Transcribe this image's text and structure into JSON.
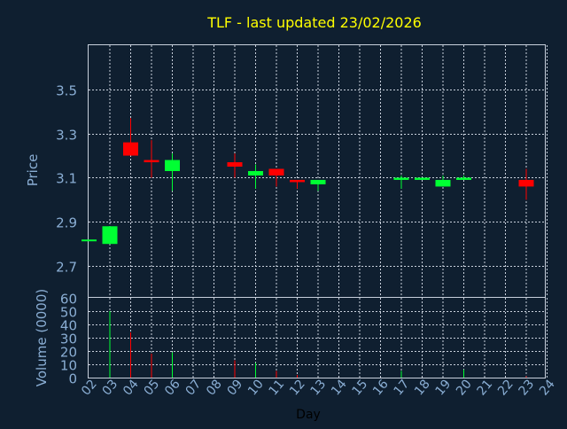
{
  "chart_data": [
    {
      "type": "candlestick",
      "title": "TLF - last updated 23/02/2026",
      "ylabel": "Price",
      "ylim": [
        2.56,
        3.7
      ],
      "yticks": [
        "2.7",
        "2.9",
        "3.1",
        "3.3",
        "3.5"
      ],
      "grid": true,
      "candles": [
        {
          "day": "02",
          "open": 2.82,
          "close": 2.82,
          "high": 2.82,
          "low": 2.82
        },
        {
          "day": "03",
          "open": 2.8,
          "close": 2.88,
          "high": 2.88,
          "low": 2.8
        },
        {
          "day": "04",
          "open": 3.26,
          "close": 3.2,
          "high": 3.37,
          "low": 3.2
        },
        {
          "day": "05",
          "open": 3.18,
          "close": 3.17,
          "high": 3.27,
          "low": 3.1
        },
        {
          "day": "06",
          "open": 3.13,
          "close": 3.18,
          "high": 3.21,
          "low": 3.04
        },
        {
          "day": "09",
          "open": 3.17,
          "close": 3.15,
          "high": 3.21,
          "low": 3.1
        },
        {
          "day": "10",
          "open": 3.11,
          "close": 3.13,
          "high": 3.16,
          "low": 3.05
        },
        {
          "day": "11",
          "open": 3.14,
          "close": 3.11,
          "high": 3.14,
          "low": 3.06
        },
        {
          "day": "12",
          "open": 3.09,
          "close": 3.08,
          "high": 3.09,
          "low": 3.05
        },
        {
          "day": "13",
          "open": 3.07,
          "close": 3.09,
          "high": 3.09,
          "low": 3.04
        },
        {
          "day": "17",
          "open": 3.09,
          "close": 3.1,
          "high": 3.11,
          "low": 3.05
        },
        {
          "day": "18",
          "open": 3.09,
          "close": 3.1,
          "high": 3.1,
          "low": 3.09
        },
        {
          "day": "19",
          "open": 3.06,
          "close": 3.09,
          "high": 3.11,
          "low": 3.06
        },
        {
          "day": "20",
          "open": 3.09,
          "close": 3.1,
          "high": 3.11,
          "low": 3.09
        },
        {
          "day": "23",
          "open": 3.09,
          "close": 3.06,
          "high": 3.14,
          "low": 3.0
        }
      ],
      "colors": {
        "up": "#00ff33",
        "down": "#ff0000"
      }
    },
    {
      "type": "bar",
      "ylabel": "Volume (0000)",
      "xlabel": "Day",
      "ylim": [
        0,
        60
      ],
      "yticks": [
        "0",
        "10",
        "20",
        "30",
        "40",
        "50",
        "60"
      ],
      "categories": [
        "02",
        "03",
        "04",
        "05",
        "06",
        "07",
        "08",
        "09",
        "10",
        "11",
        "12",
        "13",
        "14",
        "15",
        "16",
        "17",
        "18",
        "19",
        "20",
        "21",
        "22",
        "23",
        "24"
      ],
      "volumes": [
        {
          "day": "03",
          "value": 50,
          "direction": "up"
        },
        {
          "day": "04",
          "value": 34,
          "direction": "down"
        },
        {
          "day": "05",
          "value": 18,
          "direction": "down"
        },
        {
          "day": "06",
          "value": 19,
          "direction": "up"
        },
        {
          "day": "09",
          "value": 13,
          "direction": "down"
        },
        {
          "day": "10",
          "value": 11,
          "direction": "up"
        },
        {
          "day": "11",
          "value": 5,
          "direction": "down"
        },
        {
          "day": "12",
          "value": 2,
          "direction": "down"
        },
        {
          "day": "17",
          "value": 5,
          "direction": "up"
        },
        {
          "day": "20",
          "value": 6,
          "direction": "up"
        },
        {
          "day": "23",
          "value": 1,
          "direction": "down"
        }
      ]
    }
  ],
  "colors": {
    "background": "#0f1f30",
    "axis_text": "#8aaed4",
    "title_text": "#ffff00",
    "grid": "#c8d0dc"
  }
}
